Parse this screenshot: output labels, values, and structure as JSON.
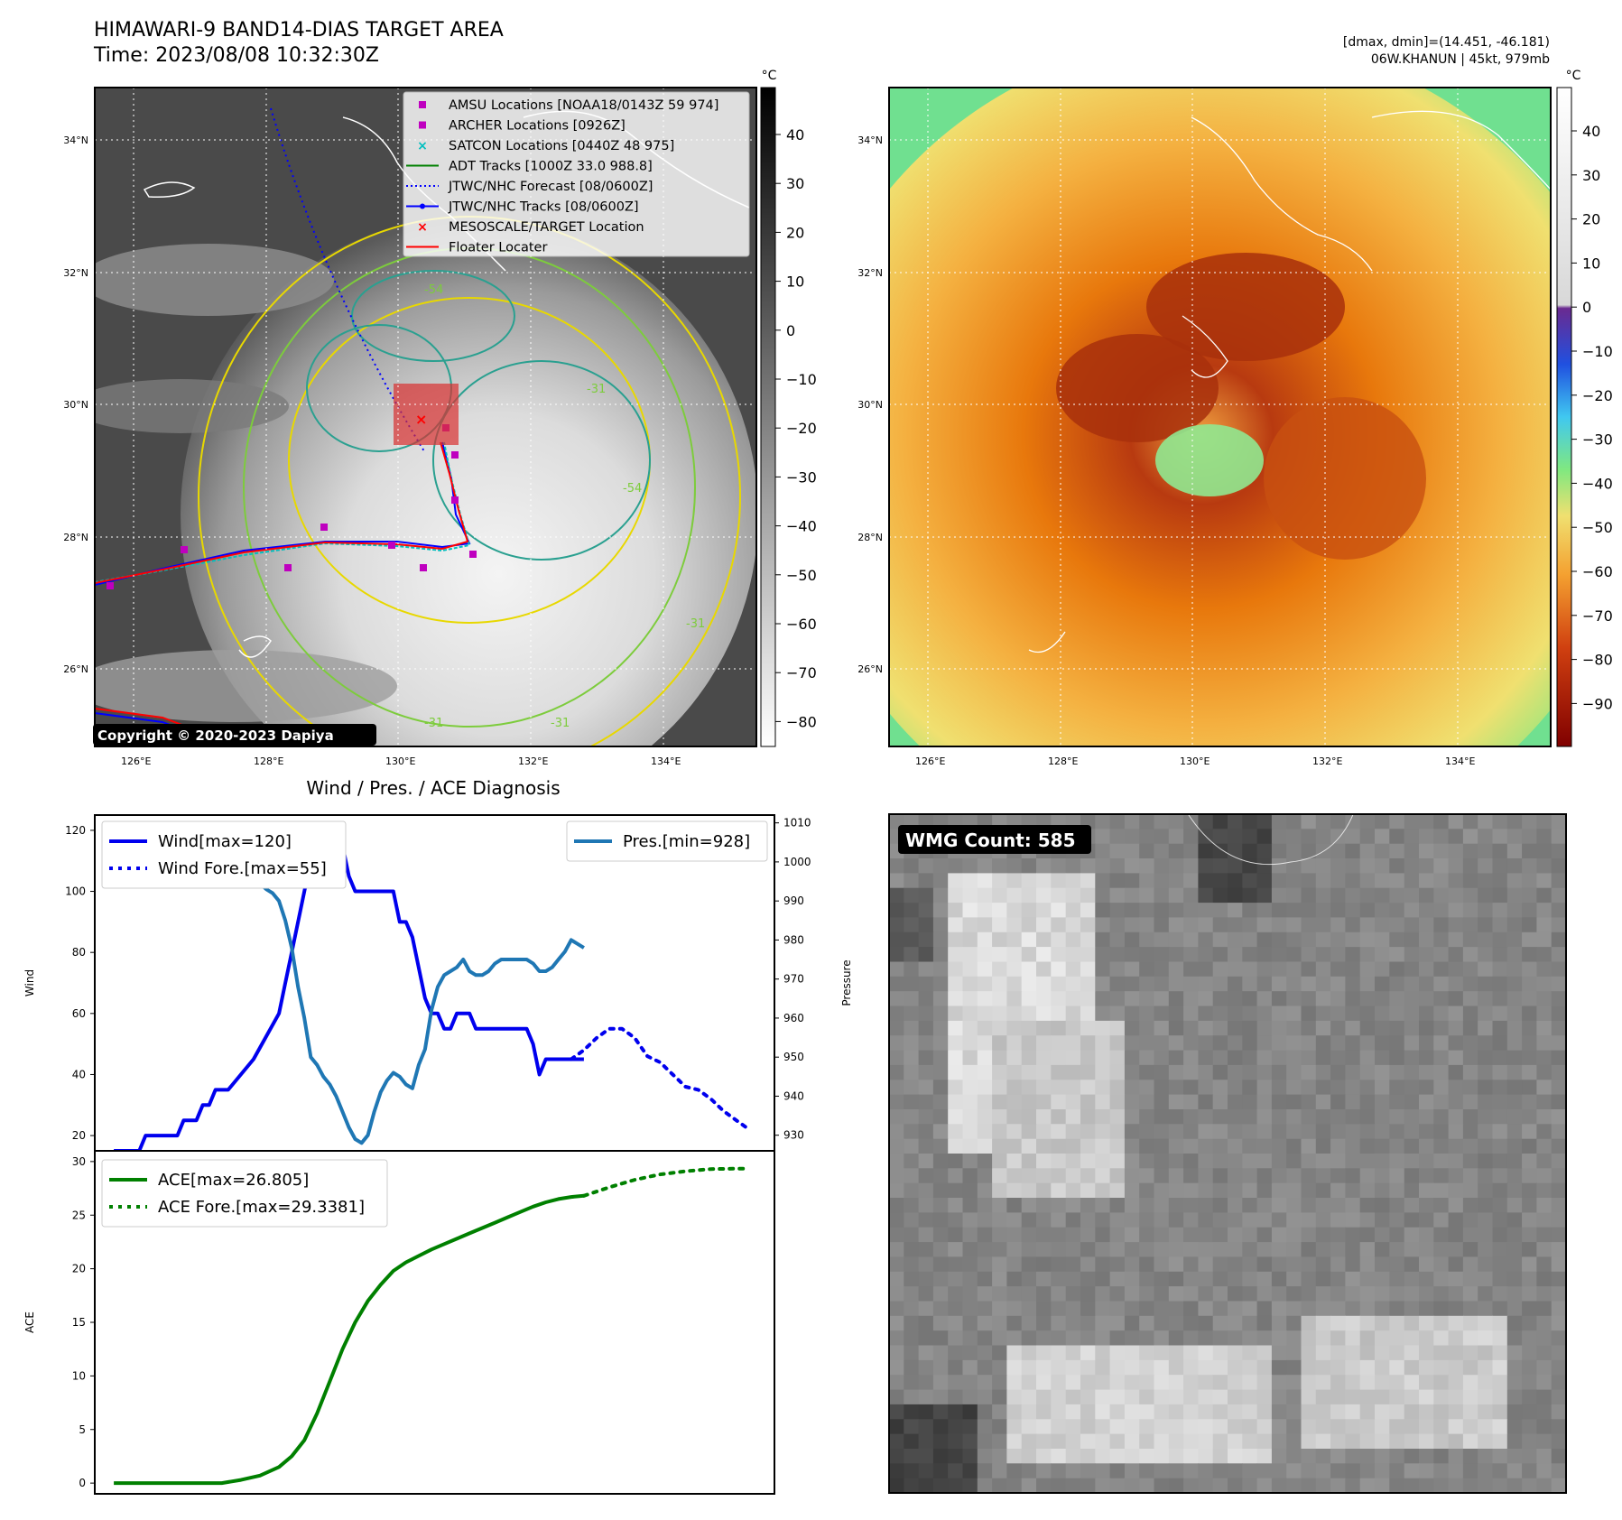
{
  "header": {
    "title_line1": "HIMAWARI-9 BAND14-DIAS TARGET AREA",
    "title_line2": "Time: 2023/08/08 10:32:30Z",
    "stats_line1": "[dmax, dmin]=(14.451, -46.181)",
    "stats_line2": "06W.KHANUN | 45kt, 979mb"
  },
  "map_ir": {
    "lon_ticks": [
      "126°E",
      "128°E",
      "130°E",
      "132°E",
      "134°E"
    ],
    "lat_ticks": [
      "34°N",
      "32°N",
      "30°N",
      "28°N",
      "26°N"
    ],
    "copyright": "Copyright © 2020-2023 Dapiya",
    "contour_labels": [
      "-31",
      "-54",
      "-54",
      "-31",
      "-31",
      "-31"
    ],
    "legend": [
      {
        "label": "AMSU Locations [NOAA18/0143Z 59 974]",
        "marker": "square",
        "color": "#bf00bf"
      },
      {
        "label": "ARCHER Locations [0926Z]",
        "marker": "square",
        "color": "#bf00bf"
      },
      {
        "label": "SATCON Locations [0440Z 48 975]",
        "marker": "x",
        "color": "#00bfbf"
      },
      {
        "label": "ADT Tracks [1000Z 33.0 988.8]",
        "marker": "line",
        "color": "#008000"
      },
      {
        "label": "JTWC/NHC Forecast [08/0600Z]",
        "marker": "dotted",
        "color": "#0000ff"
      },
      {
        "label": "JTWC/NHC Tracks [08/0600Z]",
        "marker": "line-dot",
        "color": "#0000ff"
      },
      {
        "label": "MESOSCALE/TARGET Location",
        "marker": "x",
        "color": "#ff0000"
      },
      {
        "label": "Floater Locater",
        "marker": "line",
        "color": "#ff0000"
      }
    ],
    "colorbar": {
      "unit": "°C",
      "ticks": [
        "40",
        "30",
        "20",
        "10",
        "0",
        "−10",
        "−20",
        "−30",
        "−40",
        "−50",
        "−60",
        "−70",
        "−80"
      ]
    }
  },
  "map_color": {
    "lon_ticks": [
      "126°E",
      "128°E",
      "130°E",
      "132°E",
      "134°E"
    ],
    "lat_ticks": [
      "34°N",
      "32°N",
      "30°N",
      "28°N",
      "26°N"
    ],
    "colorbar": {
      "unit": "°C",
      "ticks": [
        "40",
        "30",
        "20",
        "10",
        "0",
        "−10",
        "−20",
        "−30",
        "−40",
        "−50",
        "−60",
        "−70",
        "−80",
        "−90"
      ]
    }
  },
  "wmg": {
    "label": "WMG Count: 585"
  },
  "chart_data": [
    {
      "type": "line",
      "title": "Wind / Pres. / ACE Diagnosis",
      "ylabel": "Wind",
      "y2label": "Pressure",
      "ylim": [
        15,
        125
      ],
      "y2lim": [
        926,
        1012
      ],
      "yticks": [
        20,
        40,
        60,
        80,
        100,
        120
      ],
      "y2ticks": [
        930,
        940,
        950,
        960,
        970,
        980,
        990,
        1000,
        1010
      ],
      "x": [
        0,
        1,
        2,
        3,
        4,
        5,
        6,
        7,
        8,
        9,
        10,
        11,
        12,
        13,
        14,
        15,
        16,
        17,
        18,
        19,
        20,
        21,
        22,
        23,
        24,
        25,
        26,
        27,
        28,
        29,
        30,
        31,
        32,
        33,
        34,
        35,
        36,
        37,
        38,
        39,
        40,
        41,
        42,
        43,
        44,
        45,
        46,
        47,
        48,
        49,
        50,
        51,
        52,
        53,
        54,
        55,
        56,
        57,
        58,
        59,
        60,
        61,
        62,
        63,
        64,
        65,
        66,
        67,
        68,
        69,
        70,
        71,
        72,
        73,
        74,
        75,
        76,
        77,
        78,
        79,
        80,
        81,
        82,
        83,
        84,
        85
      ],
      "series": [
        {
          "name": "Wind[max=120]",
          "axis": "left",
          "color": "#0000ee",
          "style": "solid",
          "x": [
            0,
            4,
            5,
            10,
            11,
            13,
            14,
            15,
            16,
            17,
            18,
            22,
            26,
            27,
            28,
            29,
            30,
            31,
            32,
            33,
            34,
            35,
            36,
            37,
            38,
            39,
            40,
            44,
            45,
            46,
            47,
            48,
            49,
            50,
            51,
            52,
            53,
            54,
            55,
            56,
            57,
            58,
            59,
            60,
            61,
            62,
            63,
            64,
            65,
            66,
            67,
            68,
            69,
            70,
            71,
            72,
            73,
            74
          ],
          "values": [
            15,
            15,
            20,
            20,
            25,
            25,
            30,
            30,
            35,
            35,
            35,
            45,
            60,
            70,
            80,
            90,
            100,
            110,
            115,
            115,
            120,
            120,
            115,
            105,
            100,
            100,
            100,
            100,
            90,
            90,
            85,
            75,
            65,
            60,
            60,
            55,
            55,
            60,
            60,
            60,
            55,
            55,
            55,
            55,
            55,
            55,
            55,
            55,
            55,
            50,
            40,
            45,
            45,
            45,
            45,
            45,
            45,
            45
          ]
        },
        {
          "name": "Wind Fore.[max=55]",
          "axis": "left",
          "color": "#0000ee",
          "style": "dotted",
          "x": [
            72,
            74,
            76,
            78,
            80,
            82,
            84,
            86,
            88,
            90,
            92,
            94,
            96,
            98,
            100
          ],
          "values": [
            45,
            48,
            52,
            55,
            55,
            52,
            46,
            44,
            40,
            36,
            35,
            32,
            28,
            25,
            22
          ]
        },
        {
          "name": "Pres.[min=928]",
          "axis": "right",
          "color": "#1f77b4",
          "style": "solid",
          "x": [
            0,
            2,
            4,
            6,
            8,
            10,
            12,
            14,
            16,
            18,
            20,
            22,
            24,
            25,
            26,
            27,
            28,
            29,
            30,
            31,
            32,
            33,
            34,
            35,
            36,
            37,
            38,
            39,
            40,
            41,
            42,
            43,
            44,
            45,
            46,
            47,
            48,
            49,
            50,
            51,
            52,
            53,
            54,
            55,
            56,
            57,
            58,
            59,
            60,
            61,
            62,
            63,
            64,
            65,
            66,
            67,
            68,
            69,
            70,
            71,
            72,
            73,
            74
          ],
          "values": [
            1006,
            1007,
            1008,
            1007,
            1006,
            1005,
            1004,
            1003,
            1003,
            1002,
            1000,
            996,
            993,
            992,
            990,
            985,
            978,
            968,
            960,
            950,
            948,
            945,
            943,
            940,
            936,
            932,
            929,
            928,
            930,
            936,
            941,
            944,
            946,
            945,
            943,
            942,
            948,
            952,
            962,
            968,
            971,
            972,
            973,
            975,
            972,
            971,
            971,
            972,
            974,
            975,
            975,
            975,
            975,
            975,
            974,
            972,
            972,
            973,
            975,
            977,
            980,
            979,
            978
          ]
        }
      ]
    },
    {
      "type": "line",
      "ylabel": "ACE",
      "ylim": [
        -1,
        31
      ],
      "yticks": [
        0,
        5,
        10,
        15,
        20,
        25,
        30
      ],
      "series": [
        {
          "name": "ACE[max=26.805]",
          "color": "#008000",
          "style": "solid",
          "x": [
            0,
            10,
            17,
            20,
            23,
            26,
            28,
            30,
            32,
            34,
            36,
            38,
            40,
            42,
            44,
            46,
            48,
            50,
            52,
            54,
            56,
            58,
            60,
            62,
            64,
            66,
            68,
            70,
            72,
            74
          ],
          "values": [
            0,
            0,
            0,
            0.3,
            0.7,
            1.5,
            2.5,
            4,
            6.5,
            9.5,
            12.5,
            15,
            17,
            18.5,
            19.8,
            20.6,
            21.2,
            21.8,
            22.3,
            22.8,
            23.3,
            23.8,
            24.3,
            24.8,
            25.3,
            25.8,
            26.2,
            26.5,
            26.7,
            26.805
          ]
        },
        {
          "name": "ACE Fore.[max=29.3381]",
          "color": "#008000",
          "style": "dotted",
          "x": [
            74,
            78,
            82,
            86,
            90,
            94,
            98,
            100
          ],
          "values": [
            26.805,
            27.6,
            28.3,
            28.8,
            29.1,
            29.3,
            29.3381,
            29.3381
          ]
        }
      ]
    }
  ]
}
